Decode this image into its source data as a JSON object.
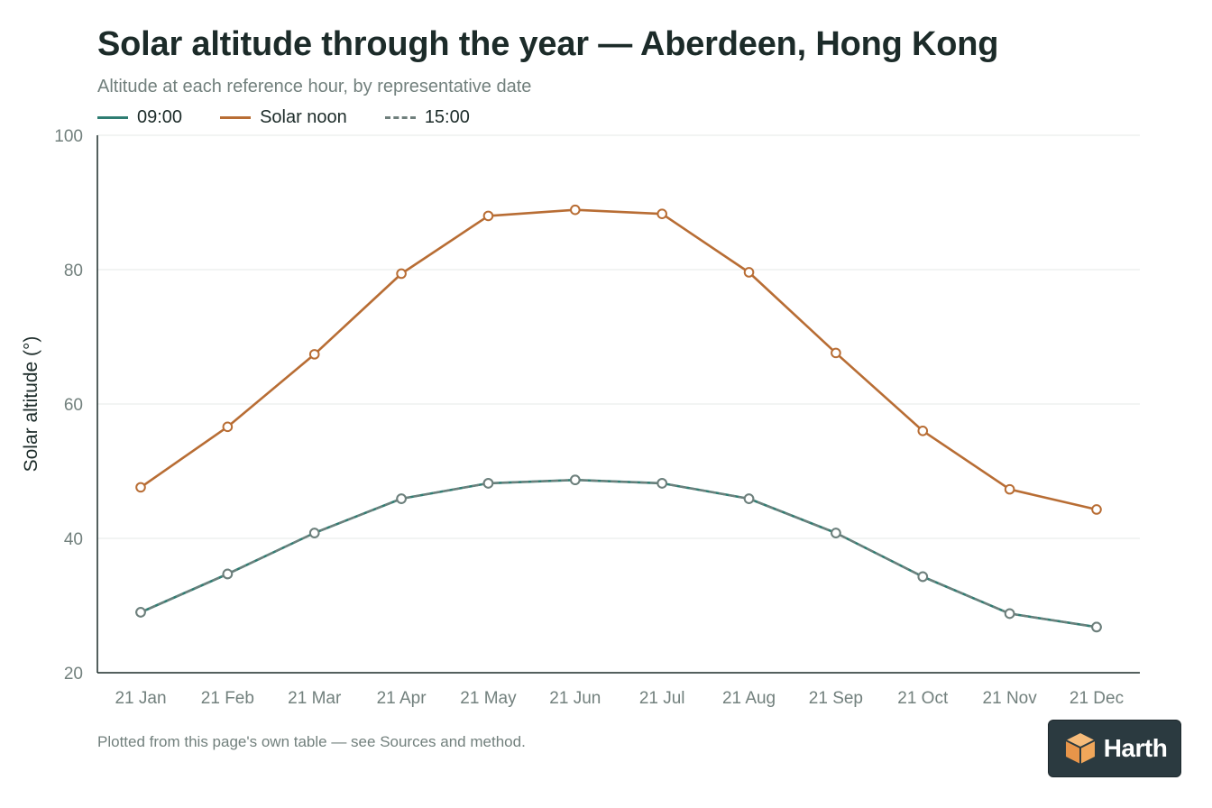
{
  "chart_data": {
    "type": "line",
    "title": "Solar altitude through the year — Aberdeen, Hong Kong",
    "subtitle": "Altitude at each reference hour, by representative date",
    "ylabel": "Solar altitude (°)",
    "xlabel": "",
    "ylim": [
      20,
      100
    ],
    "yticks": [
      20,
      40,
      60,
      80,
      100
    ],
    "grid": true,
    "legend_position": "top-left",
    "categories": [
      "21 Jan",
      "21 Feb",
      "21 Mar",
      "21 Apr",
      "21 May",
      "21 Jun",
      "21 Jul",
      "21 Aug",
      "21 Sep",
      "21 Oct",
      "21 Nov",
      "21 Dec"
    ],
    "series": [
      {
        "name": "09:00",
        "color": "#2e7d72",
        "style": "solid",
        "values": [
          29.0,
          34.7,
          40.8,
          45.9,
          48.2,
          48.7,
          48.2,
          45.9,
          40.8,
          34.3,
          28.8,
          26.8
        ]
      },
      {
        "name": "Solar noon",
        "color": "#b86d34",
        "style": "solid",
        "values": [
          47.6,
          56.6,
          67.4,
          79.4,
          88.0,
          88.9,
          88.3,
          79.6,
          67.6,
          56.0,
          47.3,
          44.3
        ]
      },
      {
        "name": "15:00",
        "color": "#6f7f7c",
        "style": "dashed",
        "values": [
          29.0,
          34.7,
          40.8,
          45.9,
          48.2,
          48.7,
          48.2,
          45.9,
          40.8,
          34.3,
          28.8,
          26.8
        ]
      }
    ]
  },
  "footnote": "Plotted from this page's own table — see Sources and method.",
  "logo": {
    "name": "Harth",
    "text": "Harth",
    "color": "#f0a65a"
  }
}
